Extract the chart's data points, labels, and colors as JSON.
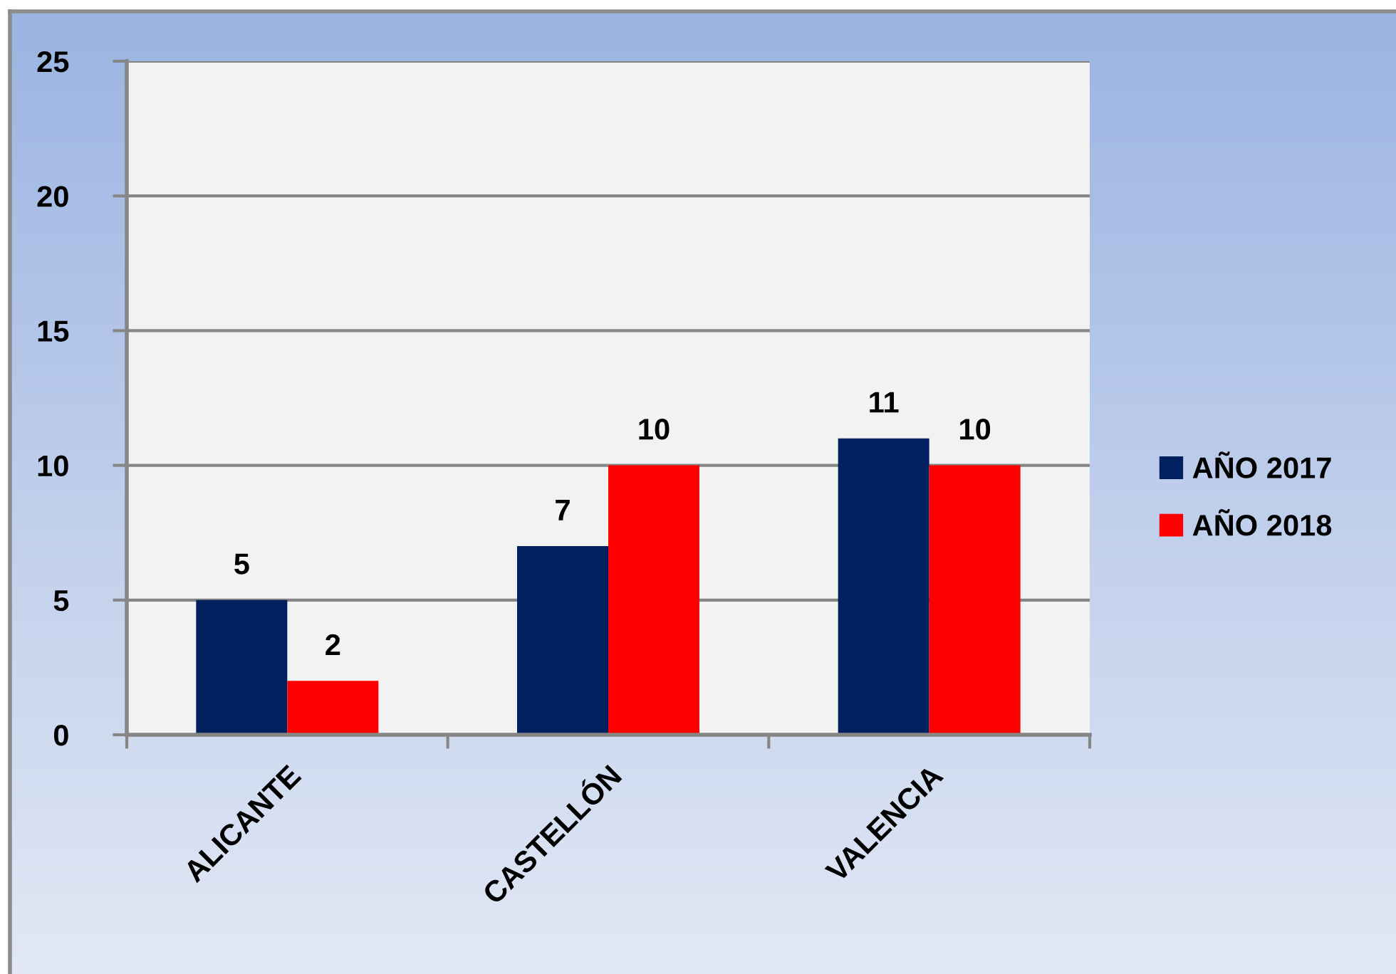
{
  "chart_data": {
    "type": "bar",
    "categories": [
      "ALICANTE",
      "CASTELLÓN",
      "VALENCIA"
    ],
    "series": [
      {
        "name": "AÑO 2017",
        "color": "#002060",
        "values": [
          5,
          7,
          11
        ]
      },
      {
        "name": "AÑO 2018",
        "color": "#ff0000",
        "values": [
          2,
          10,
          10
        ]
      }
    ],
    "ylim": [
      0,
      25
    ],
    "yticks": [
      0,
      5,
      10,
      15,
      20,
      25
    ],
    "grid": "y",
    "legend": "right",
    "data_labels": true
  }
}
